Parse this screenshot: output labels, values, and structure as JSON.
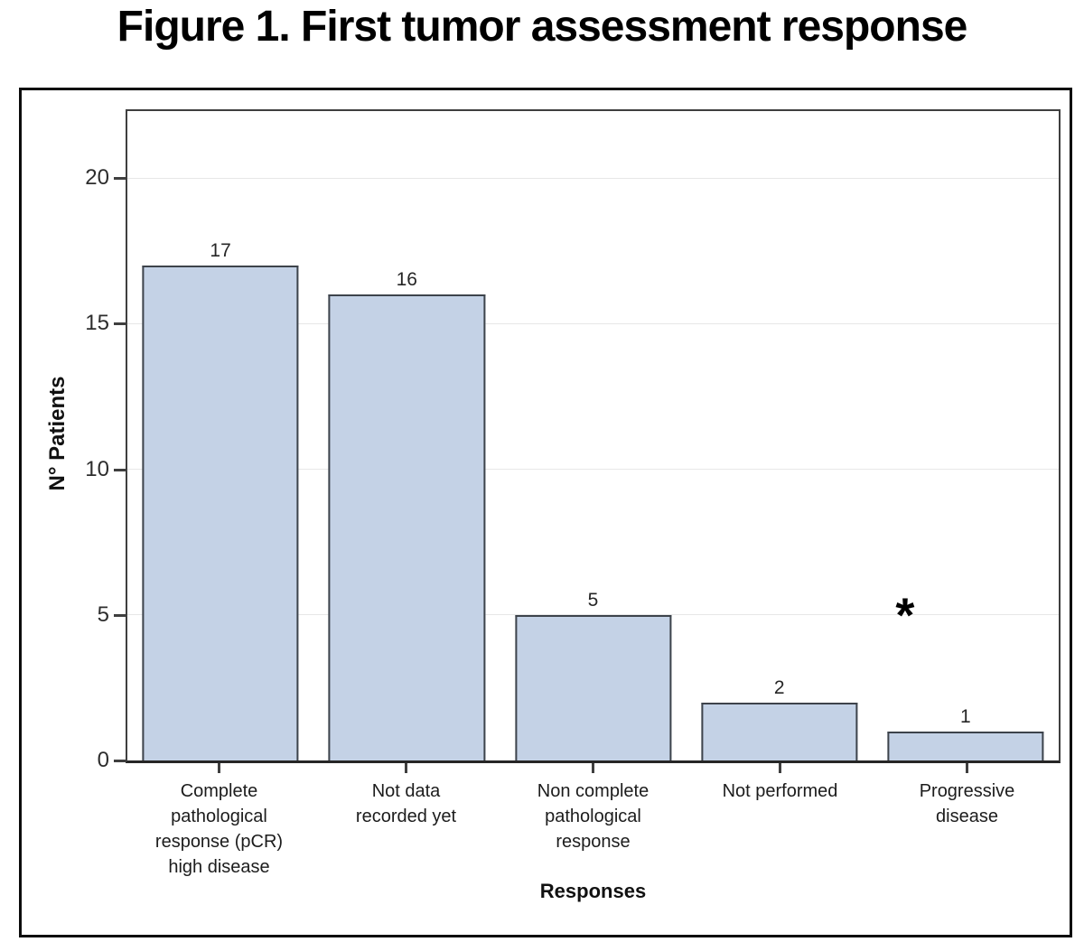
{
  "chart_data": {
    "type": "bar",
    "title": "Figure 1. First tumor assessment response",
    "categories": [
      "Complete pathological response (pCR) high disease",
      "Not data recorded yet",
      "Non complete pathological response",
      "Not performed",
      "Progressive disease"
    ],
    "categories_wrapped": [
      [
        "Complete",
        "pathological",
        "response (pCR)",
        "high disease"
      ],
      [
        "Not data",
        "recorded yet"
      ],
      [
        "Non complete",
        "pathological",
        "response"
      ],
      [
        "Not performed"
      ],
      [
        "Progressive",
        "disease"
      ]
    ],
    "values": [
      17,
      16,
      5,
      2,
      1
    ],
    "bar_value_labels": [
      "17",
      "16",
      "5",
      "2",
      "1"
    ],
    "xlabel": "Responses",
    "ylabel": "N° Patients",
    "yticks": [
      0,
      5,
      10,
      15,
      20
    ],
    "ylim": [
      0,
      22.3
    ],
    "grid": "horizontal",
    "legend": "none",
    "annotation": {
      "text": "*",
      "target_category": "Progressive disease",
      "x_fraction": 0.835,
      "y_value": 4.9
    },
    "colors": {
      "bar_fill": "#c4d2e6",
      "bar_border": "#3d434b",
      "gridline": "#e7e7e7",
      "frame": "#3f3f3f",
      "axis": "#262626",
      "text": "#1c1c1c"
    }
  }
}
